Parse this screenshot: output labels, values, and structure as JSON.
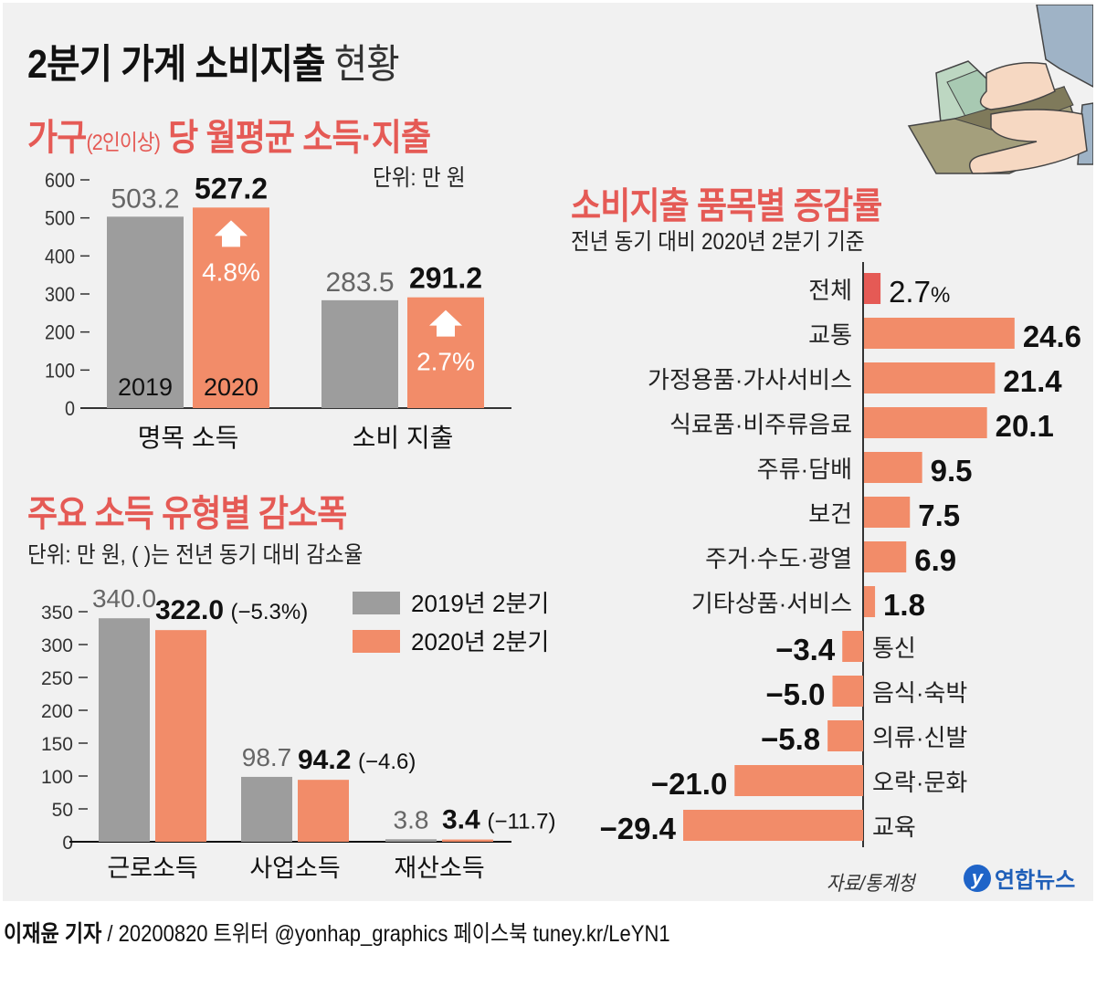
{
  "header": {
    "title_bold": "2분기 가계 소비지출",
    "title_light": "현황"
  },
  "colors": {
    "gray_bar": "#9d9d9d",
    "orange_bar": "#f28c69",
    "red_bar": "#e55a55",
    "section_title": "#e55a55",
    "panel_bg": "#f1f1f1"
  },
  "chart1": {
    "title_main_1": "가구",
    "title_small": "(2인이상)",
    "title_main_2": " 당 월평균 소득·지출",
    "unit": "단위: 만 원"
  },
  "chart2": {
    "title": "주요 소득 유형별 감소폭",
    "unit": "단위: 만 원, (   )는 전년 동기 대비 감소율"
  },
  "chart3": {
    "title": "소비지출 품목별 증감률",
    "subtitle": "전년 동기 대비 2020년 2분기 기준"
  },
  "footer": {
    "source": "자료/통계청",
    "logo_mark": "y",
    "logo_name": "연합뉴스",
    "reporter": "이재윤 기자",
    "credit_rest": " / 20200820    트위터 @yonhap_graphics  페이스북 tuney.kr/LeYN1"
  },
  "chart_data": [
    {
      "type": "bar",
      "title": "가구(2인이상) 당 월평균 소득·지출",
      "unit": "단위: 만 원",
      "categories": [
        "명목 소득",
        "소비 지출"
      ],
      "series": [
        {
          "name": "2019",
          "values": [
            503.2,
            283.5
          ],
          "labels": [
            "503.2",
            "283.5"
          ]
        },
        {
          "name": "2020",
          "values": [
            527.2,
            291.2
          ],
          "labels": [
            "527.2",
            "291.2"
          ]
        }
      ],
      "change_labels": [
        "4.8%",
        "2.7%"
      ],
      "yticks": [
        0,
        100,
        200,
        300,
        400,
        500,
        600
      ],
      "ylim": [
        0,
        600
      ],
      "grid": false
    },
    {
      "type": "bar",
      "title": "주요 소득 유형별 감소폭",
      "unit": "단위: 만 원, (   )는 전년 동기 대비 감소율",
      "categories": [
        "근로소득",
        "사업소득",
        "재산소득"
      ],
      "series": [
        {
          "name": "2019년 2분기",
          "values": [
            340.0,
            98.7,
            3.8
          ],
          "labels": [
            "340.0",
            "98.7",
            "3.8"
          ]
        },
        {
          "name": "2020년 2분기",
          "values": [
            322.0,
            94.2,
            3.4
          ],
          "labels": [
            "322.0",
            "94.2",
            "3.4"
          ]
        }
      ],
      "change_labels": [
        "(−5.3%)",
        "(−4.6)",
        "(−11.7)"
      ],
      "yticks": [
        0,
        50,
        100,
        150,
        200,
        250,
        300,
        350
      ],
      "ylim": [
        0,
        350
      ],
      "legend": "top-right",
      "grid": false
    },
    {
      "type": "bar",
      "orientation": "horizontal",
      "title": "소비지출 품목별 증감률",
      "subtitle": "전년 동기 대비 2020년 2분기 기준",
      "categories": [
        "전체",
        "교통",
        "가정용품·가사서비스",
        "식료품·비주류음료",
        "주류·담배",
        "보건",
        "주거·수도·광열",
        "기타상품·서비스",
        "통신",
        "음식·숙박",
        "의류·신발",
        "오락·문화",
        "교육"
      ],
      "values": [
        2.7,
        24.6,
        21.4,
        20.1,
        9.5,
        7.5,
        6.9,
        1.8,
        -3.4,
        -5.0,
        -5.8,
        -21.0,
        -29.4
      ],
      "labels": [
        "2.7",
        "24.6",
        "21.4",
        "20.1",
        "9.5",
        "7.5",
        "6.9",
        "1.8",
        "−3.4",
        "−5.0",
        "−5.8",
        "−21.0",
        "−29.4"
      ],
      "first_label_suffix": "%",
      "highlight_index": 0,
      "xlim": [
        -29.4,
        24.6
      ]
    }
  ]
}
